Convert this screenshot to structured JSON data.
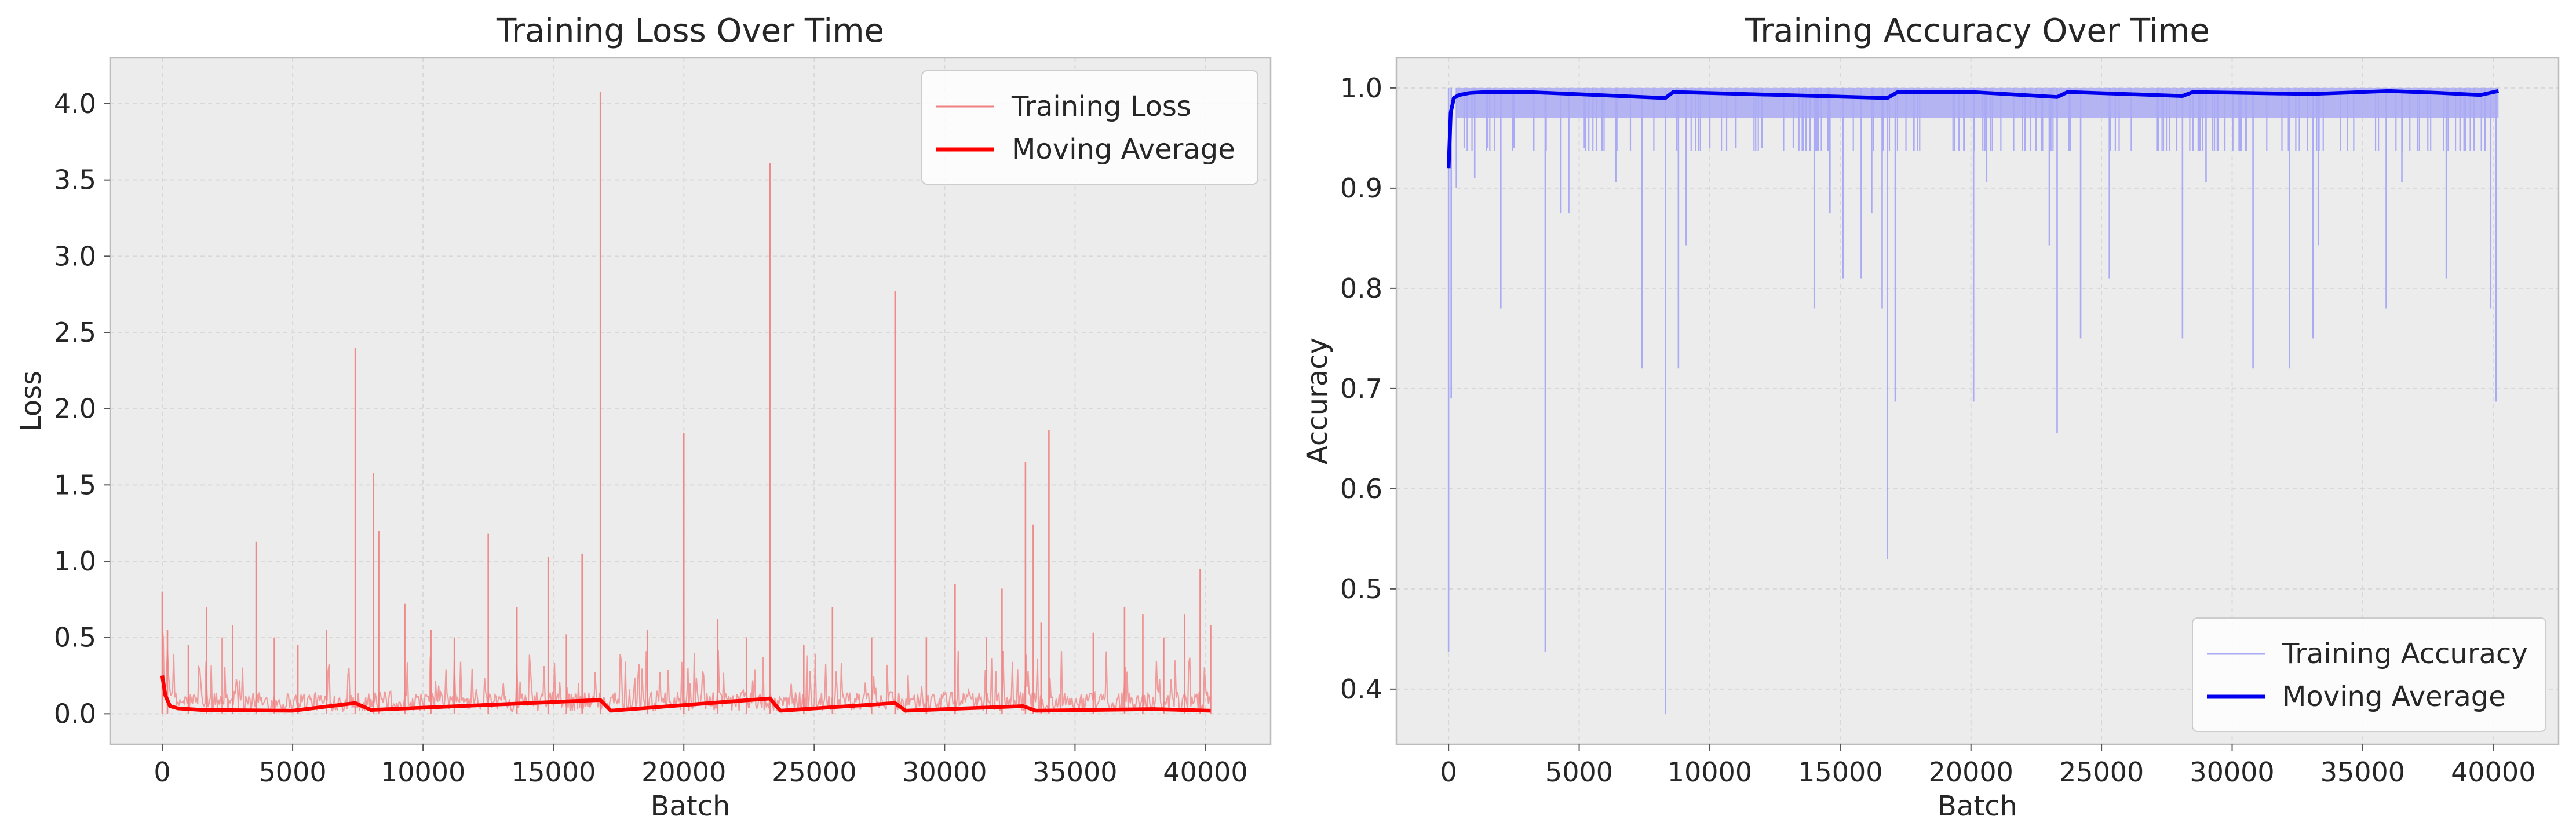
{
  "chart_data": [
    {
      "type": "line",
      "title": "Training Loss Over Time",
      "xlabel": "Batch",
      "ylabel": "Loss",
      "xlim": [
        -2000,
        42500
      ],
      "ylim": [
        -0.2,
        4.3
      ],
      "xticks": [
        0,
        5000,
        10000,
        15000,
        20000,
        25000,
        30000,
        35000,
        40000
      ],
      "xtick_labels": [
        "0",
        "5000",
        "10000",
        "15000",
        "20000",
        "25000",
        "30000",
        "35000",
        "40000"
      ],
      "yticks": [
        0,
        0.5,
        1.0,
        1.5,
        2.0,
        2.5,
        3.0,
        3.5,
        4.0
      ],
      "ytick_labels": [
        "0.0",
        "0.5",
        "1.0",
        "1.5",
        "2.0",
        "2.5",
        "3.0",
        "3.5",
        "4.0"
      ],
      "grid": true,
      "legend_position": "top-right",
      "colors": {
        "raw": "#f08080",
        "avg": "#ff0000",
        "background": "#ececec"
      },
      "series": [
        {
          "name": "Training Loss",
          "role": "raw",
          "baseline": 0.08,
          "spikes": [
            [
              0,
              0.8
            ],
            [
              200,
              0.55
            ],
            [
              1000,
              0.45
            ],
            [
              1700,
              0.7
            ],
            [
              2300,
              0.5
            ],
            [
              2700,
              0.58
            ],
            [
              3600,
              1.13
            ],
            [
              4300,
              0.5
            ],
            [
              5200,
              0.45
            ],
            [
              6300,
              0.55
            ],
            [
              7400,
              2.4
            ],
            [
              8100,
              1.58
            ],
            [
              8300,
              1.2
            ],
            [
              9300,
              0.72
            ],
            [
              10300,
              0.55
            ],
            [
              11200,
              0.5
            ],
            [
              12500,
              1.18
            ],
            [
              13600,
              0.7
            ],
            [
              14800,
              1.03
            ],
            [
              15500,
              0.52
            ],
            [
              16100,
              1.05
            ],
            [
              16800,
              4.08
            ],
            [
              18600,
              0.55
            ],
            [
              20000,
              1.84
            ],
            [
              21300,
              0.62
            ],
            [
              22400,
              0.5
            ],
            [
              23300,
              3.61
            ],
            [
              24600,
              0.45
            ],
            [
              25700,
              0.7
            ],
            [
              27200,
              0.5
            ],
            [
              28100,
              2.77
            ],
            [
              29300,
              0.5
            ],
            [
              30400,
              0.85
            ],
            [
              31600,
              0.5
            ],
            [
              32200,
              0.82
            ],
            [
              33100,
              1.65
            ],
            [
              33400,
              1.24
            ],
            [
              33700,
              0.6
            ],
            [
              34000,
              1.86
            ],
            [
              35700,
              0.53
            ],
            [
              36900,
              0.7
            ],
            [
              37600,
              0.65
            ],
            [
              38400,
              0.5
            ],
            [
              39200,
              0.65
            ],
            [
              39800,
              0.95
            ],
            [
              40200,
              0.58
            ]
          ]
        },
        {
          "name": "Moving Average",
          "role": "avg",
          "x": [
            0,
            120,
            300,
            600,
            1500,
            5000,
            7400,
            8000,
            16800,
            17200,
            23300,
            23700,
            28100,
            28500,
            33000,
            33500,
            38000,
            40200
          ],
          "y": [
            0.25,
            0.12,
            0.05,
            0.035,
            0.025,
            0.02,
            0.07,
            0.025,
            0.09,
            0.02,
            0.1,
            0.02,
            0.07,
            0.02,
            0.05,
            0.02,
            0.03,
            0.02
          ]
        }
      ]
    },
    {
      "type": "line",
      "title": "Training Accuracy Over Time",
      "xlabel": "Batch",
      "ylabel": "Accuracy",
      "xlim": [
        -2000,
        42500
      ],
      "ylim": [
        0.345,
        1.03
      ],
      "xticks": [
        0,
        5000,
        10000,
        15000,
        20000,
        25000,
        30000,
        35000,
        40000
      ],
      "xtick_labels": [
        "0",
        "5000",
        "10000",
        "15000",
        "20000",
        "25000",
        "30000",
        "35000",
        "40000"
      ],
      "yticks": [
        0.4,
        0.5,
        0.6,
        0.7,
        0.8,
        0.9,
        1.0
      ],
      "ytick_labels": [
        "0.4",
        "0.5",
        "0.6",
        "0.7",
        "0.8",
        "0.9",
        "1.0"
      ],
      "grid": true,
      "legend_position": "bottom-right",
      "colors": {
        "raw": "#aaaaf5",
        "avg": "#0000ee",
        "background": "#ececec"
      },
      "series": [
        {
          "name": "Training Accuracy",
          "role": "raw",
          "band": [
            0.97,
            1.0
          ],
          "dips": [
            [
              0,
              0.437
            ],
            [
              100,
              0.69
            ],
            [
              300,
              0.9
            ],
            [
              600,
              0.94
            ],
            [
              1000,
              0.91
            ],
            [
              1500,
              0.94
            ],
            [
              2000,
              0.78
            ],
            [
              2500,
              0.94
            ],
            [
              3700,
              0.437
            ],
            [
              4300,
              0.875
            ],
            [
              4600,
              0.875
            ],
            [
              5200,
              0.94
            ],
            [
              6400,
              0.906
            ],
            [
              7400,
              0.72
            ],
            [
              8300,
              0.375
            ],
            [
              8800,
              0.72
            ],
            [
              9100,
              0.843
            ],
            [
              10000,
              0.94
            ],
            [
              11000,
              0.94
            ],
            [
              12000,
              0.94
            ],
            [
              13200,
              0.94
            ],
            [
              14000,
              0.78
            ],
            [
              14600,
              0.875
            ],
            [
              15100,
              0.81
            ],
            [
              15800,
              0.81
            ],
            [
              16200,
              0.875
            ],
            [
              16600,
              0.78
            ],
            [
              16800,
              0.53
            ],
            [
              17100,
              0.687
            ],
            [
              20100,
              0.687
            ],
            [
              20600,
              0.906
            ],
            [
              23000,
              0.843
            ],
            [
              23300,
              0.656
            ],
            [
              24200,
              0.75
            ],
            [
              25300,
              0.81
            ],
            [
              28100,
              0.75
            ],
            [
              29000,
              0.906
            ],
            [
              30800,
              0.72
            ],
            [
              32200,
              0.72
            ],
            [
              33100,
              0.75
            ],
            [
              33300,
              0.843
            ],
            [
              35900,
              0.78
            ],
            [
              36500,
              0.906
            ],
            [
              38200,
              0.81
            ],
            [
              39900,
              0.78
            ],
            [
              40100,
              0.687
            ]
          ]
        },
        {
          "name": "Moving Average",
          "role": "avg",
          "x": [
            0,
            80,
            200,
            400,
            800,
            1500,
            3000,
            8300,
            8600,
            16800,
            17200,
            20000,
            23300,
            23700,
            28100,
            28500,
            33000,
            36000,
            38000,
            39500,
            40200
          ],
          "y": [
            0.92,
            0.975,
            0.99,
            0.993,
            0.995,
            0.996,
            0.996,
            0.99,
            0.996,
            0.99,
            0.996,
            0.996,
            0.991,
            0.996,
            0.992,
            0.996,
            0.994,
            0.997,
            0.995,
            0.993,
            0.997
          ]
        }
      ]
    }
  ]
}
